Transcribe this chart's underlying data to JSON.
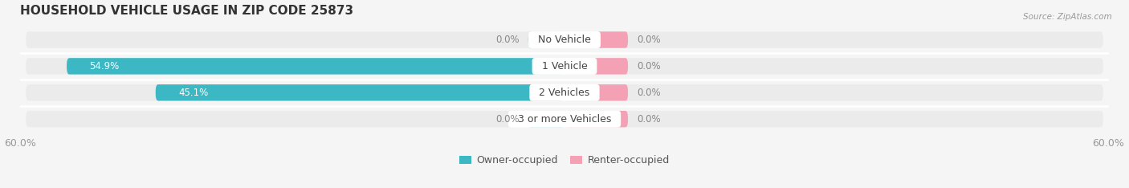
{
  "title": "HOUSEHOLD VEHICLE USAGE IN ZIP CODE 25873",
  "source_text": "Source: ZipAtlas.com",
  "categories": [
    "No Vehicle",
    "1 Vehicle",
    "2 Vehicles",
    "3 or more Vehicles"
  ],
  "owner_values": [
    0.0,
    54.9,
    45.1,
    0.0
  ],
  "renter_values": [
    0.0,
    0.0,
    0.0,
    0.0
  ],
  "owner_color": "#3BB8C3",
  "renter_color": "#F4A0B5",
  "axis_max": 60.0,
  "bar_height": 0.62,
  "background_color": "#f5f5f5",
  "bar_bg_color": "#e4e4e4",
  "row_bg_color": "#ebebeb",
  "label_owner": "Owner-occupied",
  "label_renter": "Renter-occupied",
  "title_fontsize": 11,
  "tick_fontsize": 9,
  "category_fontsize": 9,
  "value_fontsize": 8.5,
  "min_bar_display": 4.0,
  "renter_zero_display": 7.0,
  "owner_zero_display": 4.0
}
